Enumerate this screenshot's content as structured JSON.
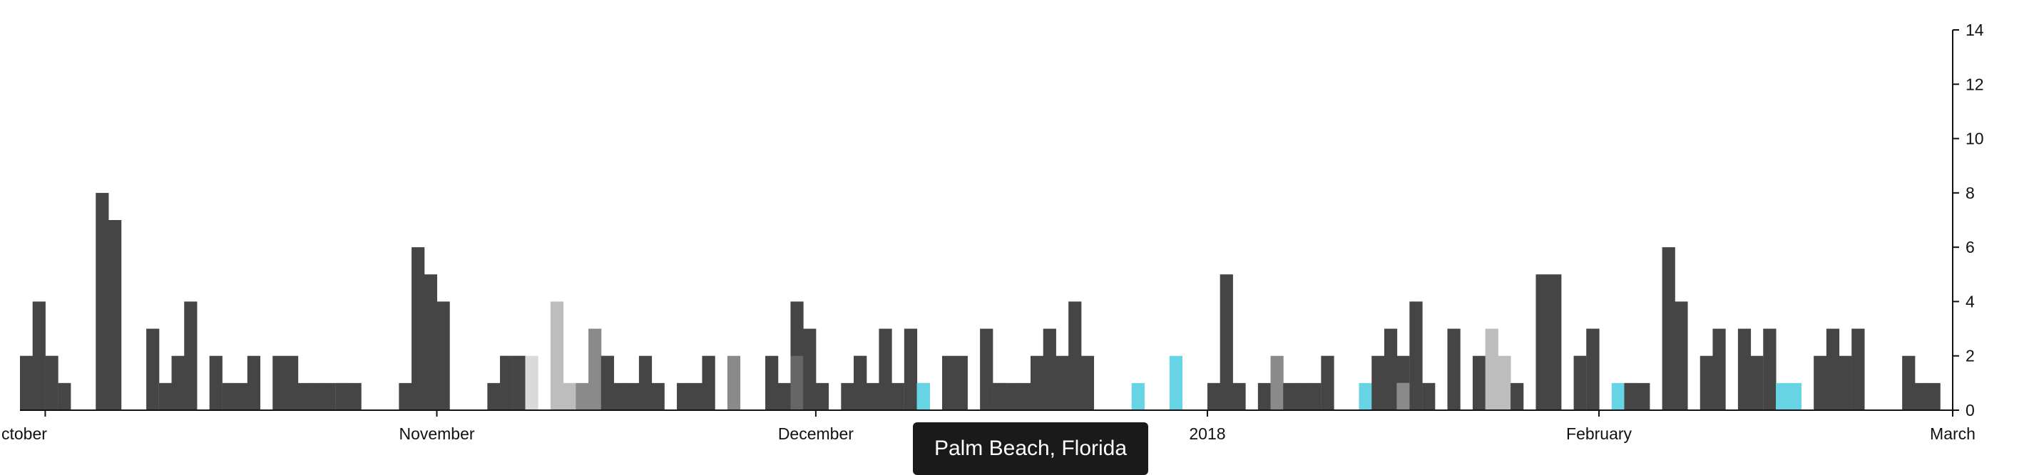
{
  "chart_data": {
    "type": "bar",
    "stacked": true,
    "x_axis_type": "date",
    "x_range": [
      "2017-09-29",
      "2018-03-01"
    ],
    "ylim": [
      0,
      14
    ],
    "y_ticks": [
      0,
      2,
      4,
      6,
      8,
      10,
      12,
      14
    ],
    "y_axis_side": "right",
    "grid": false,
    "x_ticks": [
      {
        "date": "2017-10-01",
        "label": "ctober"
      },
      {
        "date": "2017-11-01",
        "label": "November"
      },
      {
        "date": "2017-12-01",
        "label": "December"
      },
      {
        "date": "2018-01-01",
        "label": "2018"
      },
      {
        "date": "2018-02-01",
        "label": "February"
      },
      {
        "date": "2018-03-01",
        "label": "March"
      }
    ],
    "colors": {
      "dark": "#454545",
      "dim": "#666666",
      "mid": "#777777",
      "grey": "#8a8a8a",
      "light": "#bdbdbd",
      "pale": "#dadada",
      "cyan": "#66d4e4",
      "axis": "#111111"
    },
    "bars": [
      {
        "date": "2017-09-29",
        "segments": [
          [
            "light",
            2
          ],
          [
            "dark",
            2
          ]
        ]
      },
      {
        "date": "2017-09-30",
        "segments": [
          [
            "dark",
            4
          ]
        ]
      },
      {
        "date": "2017-10-01",
        "segments": [
          [
            "grey",
            2
          ],
          [
            "dark",
            2
          ]
        ]
      },
      {
        "date": "2017-10-02",
        "segments": [
          [
            "light",
            1
          ],
          [
            "dark",
            1
          ]
        ]
      },
      {
        "date": "2017-10-05",
        "segments": [
          [
            "dark",
            8
          ]
        ]
      },
      {
        "date": "2017-10-06",
        "segments": [
          [
            "light",
            7
          ],
          [
            "dark",
            7
          ]
        ]
      },
      {
        "date": "2017-10-09",
        "segments": [
          [
            "dark",
            3
          ]
        ]
      },
      {
        "date": "2017-10-10",
        "segments": [
          [
            "light",
            1
          ],
          [
            "dark",
            1
          ]
        ]
      },
      {
        "date": "2017-10-11",
        "segments": [
          [
            "dark",
            2
          ]
        ]
      },
      {
        "date": "2017-10-12",
        "segments": [
          [
            "dark",
            4
          ]
        ]
      },
      {
        "date": "2017-10-14",
        "segments": [
          [
            "dark",
            2
          ]
        ]
      },
      {
        "date": "2017-10-15",
        "segments": [
          [
            "light",
            1
          ],
          [
            "dark",
            1
          ]
        ]
      },
      {
        "date": "2017-10-16",
        "segments": [
          [
            "dark",
            1
          ]
        ]
      },
      {
        "date": "2017-10-17",
        "segments": [
          [
            "dark",
            2
          ]
        ]
      },
      {
        "date": "2017-10-19",
        "segments": [
          [
            "dark",
            2
          ]
        ]
      },
      {
        "date": "2017-10-20",
        "segments": [
          [
            "dark",
            2
          ]
        ]
      },
      {
        "date": "2017-10-21",
        "segments": [
          [
            "dark",
            1
          ]
        ]
      },
      {
        "date": "2017-10-22",
        "segments": [
          [
            "dark",
            1
          ]
        ]
      },
      {
        "date": "2017-10-23",
        "segments": [
          [
            "dark",
            1
          ]
        ]
      },
      {
        "date": "2017-10-24",
        "segments": [
          [
            "light",
            1
          ],
          [
            "dark",
            1
          ]
        ]
      },
      {
        "date": "2017-10-25",
        "segments": [
          [
            "dark",
            1
          ]
        ]
      },
      {
        "date": "2017-10-29",
        "segments": [
          [
            "dark",
            1
          ]
        ]
      },
      {
        "date": "2017-10-30",
        "segments": [
          [
            "dark",
            6
          ]
        ]
      },
      {
        "date": "2017-10-31",
        "segments": [
          [
            "dark",
            5
          ]
        ]
      },
      {
        "date": "2017-11-01",
        "segments": [
          [
            "dark",
            4
          ]
        ]
      },
      {
        "date": "2017-11-05",
        "segments": [
          [
            "dark",
            1
          ]
        ]
      },
      {
        "date": "2017-11-06",
        "segments": [
          [
            "mid",
            2
          ],
          [
            "dark",
            2
          ]
        ]
      },
      {
        "date": "2017-11-07",
        "segments": [
          [
            "mid",
            2
          ],
          [
            "dark",
            2
          ]
        ]
      },
      {
        "date": "2017-11-08",
        "segments": [
          [
            "pale",
            2
          ]
        ]
      },
      {
        "date": "2017-11-10",
        "segments": [
          [
            "light",
            4
          ]
        ]
      },
      {
        "date": "2017-11-11",
        "segments": [
          [
            "light",
            1
          ]
        ]
      },
      {
        "date": "2017-11-12",
        "segments": [
          [
            "grey",
            1
          ]
        ]
      },
      {
        "date": "2017-11-13",
        "segments": [
          [
            "grey",
            3
          ]
        ]
      },
      {
        "date": "2017-11-14",
        "segments": [
          [
            "grey",
            2
          ],
          [
            "dark",
            2
          ]
        ]
      },
      {
        "date": "2017-11-15",
        "segments": [
          [
            "dark",
            1
          ]
        ]
      },
      {
        "date": "2017-11-16",
        "segments": [
          [
            "dark",
            1
          ]
        ]
      },
      {
        "date": "2017-11-17",
        "segments": [
          [
            "dark",
            2
          ]
        ]
      },
      {
        "date": "2017-11-18",
        "segments": [
          [
            "dark",
            1
          ]
        ]
      },
      {
        "date": "2017-11-20",
        "segments": [
          [
            "dark",
            1
          ]
        ]
      },
      {
        "date": "2017-11-21",
        "segments": [
          [
            "dark",
            1
          ]
        ]
      },
      {
        "date": "2017-11-22",
        "segments": [
          [
            "cyan",
            2
          ],
          [
            "dark",
            2
          ]
        ]
      },
      {
        "date": "2017-11-24",
        "segments": [
          [
            "grey",
            2
          ]
        ]
      },
      {
        "date": "2017-11-27",
        "segments": [
          [
            "dark",
            2
          ]
        ]
      },
      {
        "date": "2017-11-28",
        "segments": [
          [
            "dark",
            1
          ]
        ]
      },
      {
        "date": "2017-11-29",
        "segments": [
          [
            "dim",
            2
          ],
          [
            "dark",
            4
          ]
        ]
      },
      {
        "date": "2017-11-30",
        "segments": [
          [
            "dark",
            3
          ]
        ]
      },
      {
        "date": "2017-12-01",
        "segments": [
          [
            "dark",
            1
          ]
        ]
      },
      {
        "date": "2017-12-03",
        "segments": [
          [
            "dark",
            1
          ]
        ]
      },
      {
        "date": "2017-12-04",
        "segments": [
          [
            "dim",
            2
          ],
          [
            "dark",
            2
          ]
        ]
      },
      {
        "date": "2017-12-05",
        "segments": [
          [
            "dark",
            1
          ]
        ]
      },
      {
        "date": "2017-12-06",
        "segments": [
          [
            "dark",
            3
          ]
        ]
      },
      {
        "date": "2017-12-07",
        "segments": [
          [
            "dark",
            1
          ]
        ]
      },
      {
        "date": "2017-12-08",
        "segments": [
          [
            "cyan",
            3
          ],
          [
            "dark",
            3
          ]
        ]
      },
      {
        "date": "2017-12-09",
        "segments": [
          [
            "grey",
            1
          ],
          [
            "cyan",
            1
          ]
        ]
      },
      {
        "date": "2017-12-11",
        "segments": [
          [
            "dark",
            2
          ]
        ]
      },
      {
        "date": "2017-12-12",
        "segments": [
          [
            "dark",
            2
          ]
        ]
      },
      {
        "date": "2017-12-14",
        "segments": [
          [
            "dark",
            3
          ]
        ]
      },
      {
        "date": "2017-12-15",
        "segments": [
          [
            "dim",
            1
          ],
          [
            "dark",
            1
          ]
        ]
      },
      {
        "date": "2017-12-16",
        "segments": [
          [
            "dark",
            1
          ]
        ]
      },
      {
        "date": "2017-12-17",
        "segments": [
          [
            "dark",
            1
          ]
        ]
      },
      {
        "date": "2017-12-18",
        "segments": [
          [
            "dark",
            2
          ]
        ]
      },
      {
        "date": "2017-12-19",
        "segments": [
          [
            "dark",
            3
          ]
        ]
      },
      {
        "date": "2017-12-20",
        "segments": [
          [
            "dark",
            2
          ]
        ]
      },
      {
        "date": "2017-12-21",
        "segments": [
          [
            "dark",
            4
          ]
        ]
      },
      {
        "date": "2017-12-22",
        "segments": [
          [
            "dark",
            2
          ]
        ]
      },
      {
        "date": "2017-12-26",
        "segments": [
          [
            "cyan",
            1
          ]
        ]
      },
      {
        "date": "2017-12-29",
        "segments": [
          [
            "cyan",
            2
          ]
        ]
      },
      {
        "date": "2018-01-01",
        "segments": [
          [
            "cyan",
            1
          ],
          [
            "dark",
            1
          ]
        ]
      },
      {
        "date": "2018-01-02",
        "segments": [
          [
            "dark",
            5
          ]
        ]
      },
      {
        "date": "2018-01-03",
        "segments": [
          [
            "dark",
            1
          ]
        ]
      },
      {
        "date": "2018-01-05",
        "segments": [
          [
            "dark",
            1
          ]
        ]
      },
      {
        "date": "2018-01-06",
        "segments": [
          [
            "grey",
            2
          ]
        ]
      },
      {
        "date": "2018-01-07",
        "segments": [
          [
            "dark",
            1
          ]
        ]
      },
      {
        "date": "2018-01-08",
        "segments": [
          [
            "dark",
            1
          ]
        ]
      },
      {
        "date": "2018-01-09",
        "segments": [
          [
            "dark",
            1
          ]
        ]
      },
      {
        "date": "2018-01-10",
        "segments": [
          [
            "cyan",
            2
          ],
          [
            "dark",
            2
          ]
        ]
      },
      {
        "date": "2018-01-13",
        "segments": [
          [
            "cyan",
            1
          ]
        ]
      },
      {
        "date": "2018-01-14",
        "segments": [
          [
            "dark",
            2
          ]
        ]
      },
      {
        "date": "2018-01-15",
        "segments": [
          [
            "dark",
            3
          ]
        ]
      },
      {
        "date": "2018-01-16",
        "segments": [
          [
            "pale",
            1
          ],
          [
            "grey",
            1
          ],
          [
            "dark",
            2
          ]
        ]
      },
      {
        "date": "2018-01-17",
        "segments": [
          [
            "cyan",
            4
          ],
          [
            "dark",
            4
          ]
        ]
      },
      {
        "date": "2018-01-18",
        "segments": [
          [
            "cyan",
            1
          ],
          [
            "dark",
            1
          ]
        ]
      },
      {
        "date": "2018-01-20",
        "segments": [
          [
            "dark",
            3
          ]
        ]
      },
      {
        "date": "2018-01-22",
        "segments": [
          [
            "dark",
            2
          ]
        ]
      },
      {
        "date": "2018-01-23",
        "segments": [
          [
            "light",
            3
          ]
        ]
      },
      {
        "date": "2018-01-24",
        "segments": [
          [
            "light",
            2
          ]
        ]
      },
      {
        "date": "2018-01-25",
        "segments": [
          [
            "dark",
            1
          ]
        ]
      },
      {
        "date": "2018-01-27",
        "segments": [
          [
            "dark",
            5
          ]
        ]
      },
      {
        "date": "2018-01-28",
        "segments": [
          [
            "dark",
            5
          ]
        ]
      },
      {
        "date": "2018-01-30",
        "segments": [
          [
            "grey",
            2
          ],
          [
            "dark",
            2
          ]
        ]
      },
      {
        "date": "2018-01-31",
        "segments": [
          [
            "cyan",
            3
          ],
          [
            "dim",
            3
          ],
          [
            "dark",
            3
          ]
        ]
      },
      {
        "date": "2018-02-02",
        "segments": [
          [
            "cyan",
            1
          ]
        ]
      },
      {
        "date": "2018-02-03",
        "segments": [
          [
            "light",
            1
          ],
          [
            "dark",
            1
          ]
        ]
      },
      {
        "date": "2018-02-04",
        "segments": [
          [
            "dark",
            1
          ]
        ]
      },
      {
        "date": "2018-02-06",
        "segments": [
          [
            "dark",
            6
          ]
        ]
      },
      {
        "date": "2018-02-07",
        "segments": [
          [
            "dark",
            4
          ]
        ]
      },
      {
        "date": "2018-02-09",
        "segments": [
          [
            "dark",
            2
          ]
        ]
      },
      {
        "date": "2018-02-10",
        "segments": [
          [
            "dark",
            3
          ]
        ]
      },
      {
        "date": "2018-02-12",
        "segments": [
          [
            "dark",
            3
          ]
        ]
      },
      {
        "date": "2018-02-13",
        "segments": [
          [
            "dark",
            2
          ]
        ]
      },
      {
        "date": "2018-02-14",
        "segments": [
          [
            "cyan",
            3
          ],
          [
            "dark",
            3
          ]
        ]
      },
      {
        "date": "2018-02-15",
        "segments": [
          [
            "cyan",
            1
          ]
        ]
      },
      {
        "date": "2018-02-16",
        "segments": [
          [
            "cyan",
            1
          ]
        ]
      },
      {
        "date": "2018-02-18",
        "segments": [
          [
            "dark",
            2
          ]
        ]
      },
      {
        "date": "2018-02-19",
        "segments": [
          [
            "dark",
            3
          ]
        ]
      },
      {
        "date": "2018-02-20",
        "segments": [
          [
            "dark",
            2
          ]
        ]
      },
      {
        "date": "2018-02-21",
        "segments": [
          [
            "grey",
            3
          ],
          [
            "dark",
            3
          ]
        ]
      },
      {
        "date": "2018-02-25",
        "segments": [
          [
            "dark",
            2
          ]
        ]
      },
      {
        "date": "2018-02-26",
        "segments": [
          [
            "dark",
            1
          ]
        ]
      },
      {
        "date": "2018-02-27",
        "segments": [
          [
            "dark",
            1
          ]
        ]
      }
    ]
  },
  "tooltip": {
    "text": "Palm Beach, Florida"
  }
}
